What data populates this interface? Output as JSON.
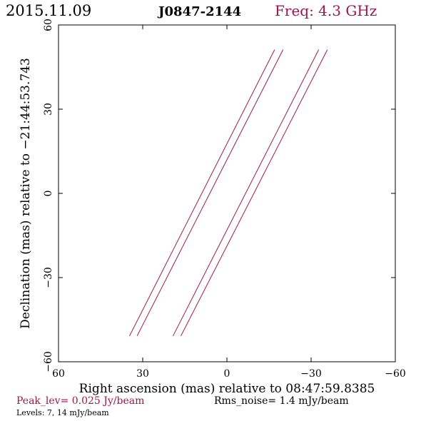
{
  "header": {
    "date": "2015.11.09",
    "source": "J0847-2144",
    "freq": "Freq: 4.3 GHz"
  },
  "footer": {
    "peak": "Peak_lev=  0.025 Jy/beam",
    "rms": "Rms_noise=  1.4 mJy/beam",
    "levels": "Levels:   7,  14 mJy/beam"
  },
  "colors": {
    "accent": "#a0154a",
    "contour": "#9a1b45",
    "text": "#000000"
  },
  "chart_data": {
    "type": "contour",
    "xlabel": "Right ascension (mas) relative to 08:47:59.8385",
    "ylabel": "Declination (mas) relative to −21:44:53.743",
    "xlim": [
      60,
      -60
    ],
    "ylim": [
      -60,
      60
    ],
    "xticks": [
      60,
      30,
      0,
      -30,
      -60
    ],
    "yticks": [
      -60,
      -30,
      0,
      30,
      60
    ],
    "xtick_labels": [
      "60",
      "30",
      "0",
      "−30",
      "−60"
    ],
    "ytick_labels": [
      "−60",
      "−30",
      "0",
      "30",
      "60"
    ],
    "contour_levels_mjy": [
      7,
      14
    ],
    "series": [
      {
        "x": [
          34.7,
          -17.0
        ],
        "y": [
          -50.8,
          51.2
        ]
      },
      {
        "x": [
          32.0,
          -20.0
        ],
        "y": [
          -50.8,
          51.2
        ]
      },
      {
        "x": [
          19.2,
          -32.7
        ],
        "y": [
          -50.8,
          51.2
        ]
      },
      {
        "x": [
          16.4,
          -35.8
        ],
        "y": [
          -50.8,
          51.2
        ]
      }
    ]
  }
}
